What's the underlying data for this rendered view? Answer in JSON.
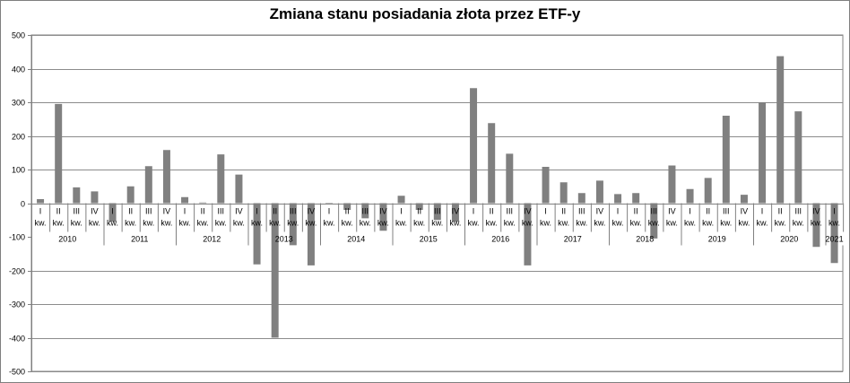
{
  "chart_data": {
    "type": "bar",
    "title": "Zmiana stanu posiadania złota przez ETF-y",
    "xlabel": "",
    "ylabel": "",
    "ylim": [
      -500,
      500
    ],
    "yticks": [
      500,
      400,
      300,
      200,
      100,
      0,
      -100,
      -200,
      -300,
      -400,
      -500
    ],
    "grid": true,
    "legend": "none",
    "bar_color": "#808080",
    "quarter_suffix": "kw.",
    "categories": [
      {
        "q": "I",
        "year": "2010"
      },
      {
        "q": "II",
        "year": "2010"
      },
      {
        "q": "III",
        "year": "2010"
      },
      {
        "q": "IV",
        "year": "2010"
      },
      {
        "q": "I",
        "year": "2011"
      },
      {
        "q": "II",
        "year": "2011"
      },
      {
        "q": "III",
        "year": "2011"
      },
      {
        "q": "IV",
        "year": "2011"
      },
      {
        "q": "I",
        "year": "2012"
      },
      {
        "q": "II",
        "year": "2012"
      },
      {
        "q": "III",
        "year": "2012"
      },
      {
        "q": "IV",
        "year": "2012"
      },
      {
        "q": "I",
        "year": "2013"
      },
      {
        "q": "II",
        "year": "2013"
      },
      {
        "q": "III",
        "year": "2013"
      },
      {
        "q": "IV",
        "year": "2013"
      },
      {
        "q": "I",
        "year": "2014"
      },
      {
        "q": "II",
        "year": "2014"
      },
      {
        "q": "III",
        "year": "2014"
      },
      {
        "q": "IV",
        "year": "2014"
      },
      {
        "q": "I",
        "year": "2015"
      },
      {
        "q": "II",
        "year": "2015"
      },
      {
        "q": "III",
        "year": "2015"
      },
      {
        "q": "IV",
        "year": "2015"
      },
      {
        "q": "I",
        "year": "2016"
      },
      {
        "q": "II",
        "year": "2016"
      },
      {
        "q": "III",
        "year": "2016"
      },
      {
        "q": "IV",
        "year": "2016"
      },
      {
        "q": "I",
        "year": "2017"
      },
      {
        "q": "II",
        "year": "2017"
      },
      {
        "q": "III",
        "year": "2017"
      },
      {
        "q": "IV",
        "year": "2017"
      },
      {
        "q": "I",
        "year": "2018"
      },
      {
        "q": "II",
        "year": "2018"
      },
      {
        "q": "III",
        "year": "2018"
      },
      {
        "q": "IV",
        "year": "2018"
      },
      {
        "q": "I",
        "year": "2019"
      },
      {
        "q": "II",
        "year": "2019"
      },
      {
        "q": "III",
        "year": "2019"
      },
      {
        "q": "IV",
        "year": "2019"
      },
      {
        "q": "I",
        "year": "2020"
      },
      {
        "q": "II",
        "year": "2020"
      },
      {
        "q": "III",
        "year": "2020"
      },
      {
        "q": "IV",
        "year": "2020"
      },
      {
        "q": "I",
        "year": "2021"
      }
    ],
    "years": [
      "2010",
      "2011",
      "2012",
      "2013",
      "2014",
      "2015",
      "2016",
      "2017",
      "2018",
      "2019",
      "2020",
      "2021"
    ],
    "values": [
      12,
      295,
      47,
      35,
      -55,
      50,
      110,
      158,
      18,
      2,
      145,
      85,
      -182,
      -400,
      -125,
      -185,
      -2,
      -20,
      -45,
      -82,
      22,
      -20,
      -50,
      -55,
      342,
      238,
      147,
      -185,
      108,
      62,
      30,
      67,
      27,
      30,
      -105,
      112,
      42,
      75,
      260,
      25,
      300,
      437,
      273,
      -130,
      -178
    ]
  }
}
